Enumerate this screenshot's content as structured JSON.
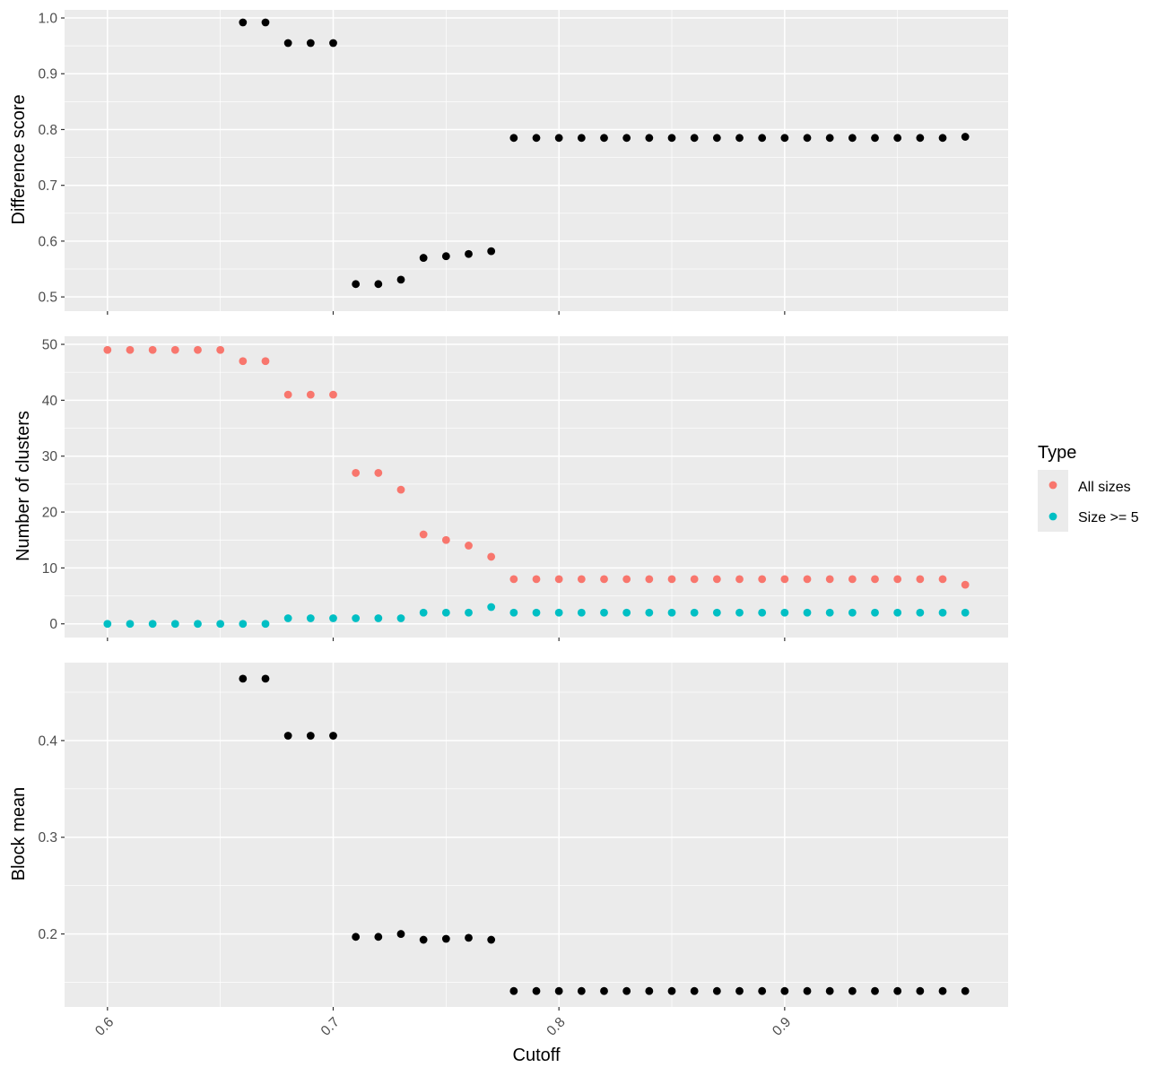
{
  "chart_data": [
    {
      "type": "scatter",
      "ylabel": "Difference score",
      "ylim": [
        0.5,
        1.0
      ],
      "yticks": [
        0.5,
        0.6,
        0.7,
        0.8,
        0.9,
        1.0
      ],
      "ytick_labels": [
        "0.5",
        "0.6",
        "0.7",
        "0.8",
        "0.9",
        "1.0"
      ],
      "xlim": [
        0.6,
        0.98
      ],
      "grid": true,
      "series": [
        {
          "color": "#000000",
          "x": [
            0.66,
            0.67,
            0.68,
            0.69,
            0.7,
            0.71,
            0.72,
            0.73,
            0.74,
            0.75,
            0.76,
            0.77,
            0.78,
            0.79,
            0.8,
            0.81,
            0.82,
            0.83,
            0.84,
            0.85,
            0.86,
            0.87,
            0.88,
            0.89,
            0.9,
            0.91,
            0.92,
            0.93,
            0.94,
            0.95,
            0.96,
            0.97,
            0.98
          ],
          "y": [
            0.992,
            0.992,
            0.955,
            0.955,
            0.955,
            0.523,
            0.523,
            0.531,
            0.57,
            0.573,
            0.577,
            0.582,
            0.785,
            0.785,
            0.785,
            0.785,
            0.785,
            0.785,
            0.785,
            0.785,
            0.785,
            0.785,
            0.785,
            0.785,
            0.785,
            0.785,
            0.785,
            0.785,
            0.785,
            0.785,
            0.785,
            0.785,
            0.787
          ]
        }
      ]
    },
    {
      "type": "scatter",
      "ylabel": "Number of clusters",
      "ylim": [
        0,
        50
      ],
      "yticks": [
        0,
        10,
        20,
        30,
        40,
        50
      ],
      "ytick_labels": [
        "0",
        "10",
        "20",
        "30",
        "40",
        "50"
      ],
      "xlim": [
        0.6,
        0.98
      ],
      "grid": true,
      "legend": {
        "title": "Type",
        "placement": "right",
        "entries": [
          {
            "label": "All sizes",
            "color": "#F8766D"
          },
          {
            "label": "Size >= 5",
            "color": "#00BFC4"
          }
        ]
      },
      "series": [
        {
          "name": "All sizes",
          "color": "#F8766D",
          "x": [
            0.6,
            0.61,
            0.62,
            0.63,
            0.64,
            0.65,
            0.66,
            0.67,
            0.68,
            0.69,
            0.7,
            0.71,
            0.72,
            0.73,
            0.74,
            0.75,
            0.76,
            0.77,
            0.78,
            0.79,
            0.8,
            0.81,
            0.82,
            0.83,
            0.84,
            0.85,
            0.86,
            0.87,
            0.88,
            0.89,
            0.9,
            0.91,
            0.92,
            0.93,
            0.94,
            0.95,
            0.96,
            0.97,
            0.98
          ],
          "y": [
            49,
            49,
            49,
            49,
            49,
            49,
            47,
            47,
            41,
            41,
            41,
            27,
            27,
            24,
            16,
            15,
            14,
            12,
            8,
            8,
            8,
            8,
            8,
            8,
            8,
            8,
            8,
            8,
            8,
            8,
            8,
            8,
            8,
            8,
            8,
            8,
            8,
            8,
            7
          ]
        },
        {
          "name": "Size >= 5",
          "color": "#00BFC4",
          "x": [
            0.6,
            0.61,
            0.62,
            0.63,
            0.64,
            0.65,
            0.66,
            0.67,
            0.68,
            0.69,
            0.7,
            0.71,
            0.72,
            0.73,
            0.74,
            0.75,
            0.76,
            0.77,
            0.78,
            0.79,
            0.8,
            0.81,
            0.82,
            0.83,
            0.84,
            0.85,
            0.86,
            0.87,
            0.88,
            0.89,
            0.9,
            0.91,
            0.92,
            0.93,
            0.94,
            0.95,
            0.96,
            0.97,
            0.98
          ],
          "y": [
            0,
            0,
            0,
            0,
            0,
            0,
            0,
            0,
            1,
            1,
            1,
            1,
            1,
            1,
            2,
            2,
            2,
            3,
            2,
            2,
            2,
            2,
            2,
            2,
            2,
            2,
            2,
            2,
            2,
            2,
            2,
            2,
            2,
            2,
            2,
            2,
            2,
            2,
            2
          ]
        }
      ]
    },
    {
      "type": "scatter",
      "xlabel": "Cutoff",
      "ylabel": "Block mean",
      "ylim": [
        0.14,
        0.47
      ],
      "yticks": [
        0.2,
        0.3,
        0.4
      ],
      "ytick_labels": [
        "0.2",
        "0.3",
        "0.4"
      ],
      "xlim": [
        0.6,
        0.98
      ],
      "xticks": [
        0.6,
        0.7,
        0.8,
        0.9
      ],
      "xtick_labels": [
        "0.6",
        "0.7",
        "0.8",
        "0.9"
      ],
      "grid": true,
      "series": [
        {
          "color": "#000000",
          "x": [
            0.66,
            0.67,
            0.68,
            0.69,
            0.7,
            0.71,
            0.72,
            0.73,
            0.74,
            0.75,
            0.76,
            0.77,
            0.78,
            0.79,
            0.8,
            0.81,
            0.82,
            0.83,
            0.84,
            0.85,
            0.86,
            0.87,
            0.88,
            0.89,
            0.9,
            0.91,
            0.92,
            0.93,
            0.94,
            0.95,
            0.96,
            0.97,
            0.98
          ],
          "y": [
            0.464,
            0.464,
            0.405,
            0.405,
            0.405,
            0.197,
            0.197,
            0.2,
            0.194,
            0.195,
            0.196,
            0.194,
            0.141,
            0.141,
            0.141,
            0.141,
            0.141,
            0.141,
            0.141,
            0.141,
            0.141,
            0.141,
            0.141,
            0.141,
            0.141,
            0.141,
            0.141,
            0.141,
            0.141,
            0.141,
            0.141,
            0.141,
            0.141
          ]
        }
      ]
    }
  ]
}
